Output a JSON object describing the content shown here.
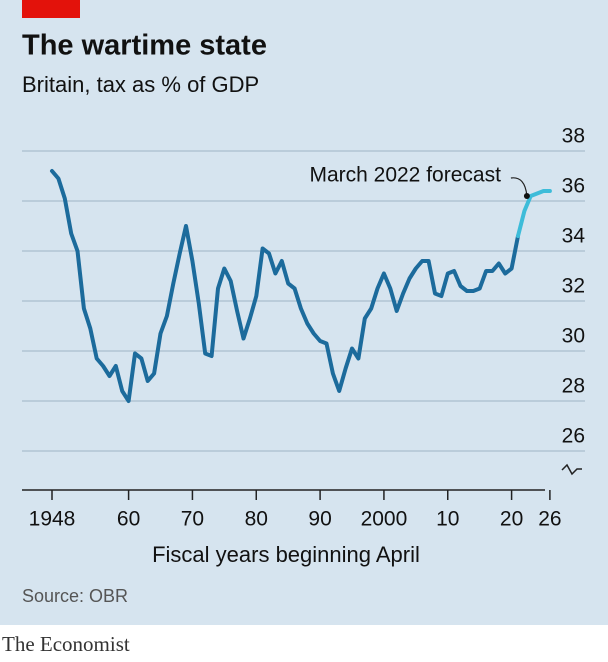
{
  "chart_data": {
    "type": "line",
    "title": "The wartime state",
    "subtitle": "Britain, tax as % of GDP",
    "xlabel": "Fiscal years beginning April",
    "source": "Source: OBR",
    "brand": "The Economist",
    "annotation": {
      "text": "March 2022 forecast",
      "x": 2022.4,
      "y": 36.2
    },
    "x": [
      1948,
      1949,
      1950,
      1951,
      1952,
      1953,
      1954,
      1955,
      1956,
      1957,
      1958,
      1959,
      1960,
      1961,
      1962,
      1963,
      1964,
      1965,
      1966,
      1967,
      1968,
      1969,
      1970,
      1971,
      1972,
      1973,
      1974,
      1975,
      1976,
      1977,
      1978,
      1979,
      1980,
      1981,
      1982,
      1983,
      1984,
      1985,
      1986,
      1987,
      1988,
      1989,
      1990,
      1991,
      1992,
      1993,
      1994,
      1995,
      1996,
      1997,
      1998,
      1999,
      2000,
      2001,
      2002,
      2003,
      2004,
      2005,
      2006,
      2007,
      2008,
      2009,
      2010,
      2011,
      2012,
      2013,
      2014,
      2015,
      2016,
      2017,
      2018,
      2019,
      2020,
      2021,
      2022,
      2023,
      2024,
      2025,
      2026
    ],
    "series": [
      {
        "color": "#1c6b9c",
        "values": [
          37.2,
          36.9,
          36.1,
          34.7,
          34.0,
          31.7,
          30.9,
          29.7,
          29.4,
          29.0,
          29.4,
          28.4,
          28.0,
          29.9,
          29.7,
          28.8,
          29.1,
          30.7,
          31.4,
          32.7,
          33.9,
          35.0,
          33.6,
          31.9,
          29.9,
          29.8,
          32.5,
          33.3,
          32.8,
          31.6,
          30.5,
          31.3,
          32.2,
          34.1,
          33.9,
          33.1,
          33.6,
          32.7,
          32.5,
          31.7,
          31.1,
          30.7,
          30.4,
          30.3,
          29.1,
          28.4,
          29.3,
          30.1,
          29.7,
          31.3,
          31.7,
          32.5,
          33.1,
          32.5,
          31.6,
          32.3,
          32.9,
          33.3,
          33.6,
          33.6,
          32.3,
          32.2,
          33.1,
          33.2,
          32.6,
          32.4,
          32.4,
          32.5,
          33.2,
          33.2,
          33.5,
          33.1,
          33.3,
          34.6,
          null,
          null,
          null,
          null,
          null
        ]
      },
      {
        "color": "#3dbcd9",
        "values": [
          null,
          null,
          null,
          null,
          null,
          null,
          null,
          null,
          null,
          null,
          null,
          null,
          null,
          null,
          null,
          null,
          null,
          null,
          null,
          null,
          null,
          null,
          null,
          null,
          null,
          null,
          null,
          null,
          null,
          null,
          null,
          null,
          null,
          null,
          null,
          null,
          null,
          null,
          null,
          null,
          null,
          null,
          null,
          null,
          null,
          null,
          null,
          null,
          null,
          null,
          null,
          null,
          null,
          null,
          null,
          null,
          null,
          null,
          null,
          null,
          null,
          null,
          null,
          null,
          null,
          null,
          null,
          null,
          null,
          null,
          null,
          null,
          null,
          34.6,
          35.6,
          36.2,
          36.3,
          36.4,
          36.4
        ]
      }
    ],
    "xlim": [
      1943.3,
      2031.5
    ],
    "xticks": [
      {
        "value": 1948,
        "label": "1948"
      },
      {
        "value": 1960,
        "label": "60"
      },
      {
        "value": 1970,
        "label": "70"
      },
      {
        "value": 1980,
        "label": "80"
      },
      {
        "value": 1990,
        "label": "90"
      },
      {
        "value": 2000,
        "label": "2000"
      },
      {
        "value": 2010,
        "label": "10"
      },
      {
        "value": 2020,
        "label": "20"
      },
      {
        "value": 2026,
        "label": "26"
      }
    ],
    "ylim": [
      26,
      38
    ],
    "yticks": [
      26,
      28,
      30,
      32,
      34,
      36,
      38
    ],
    "grid": true
  }
}
